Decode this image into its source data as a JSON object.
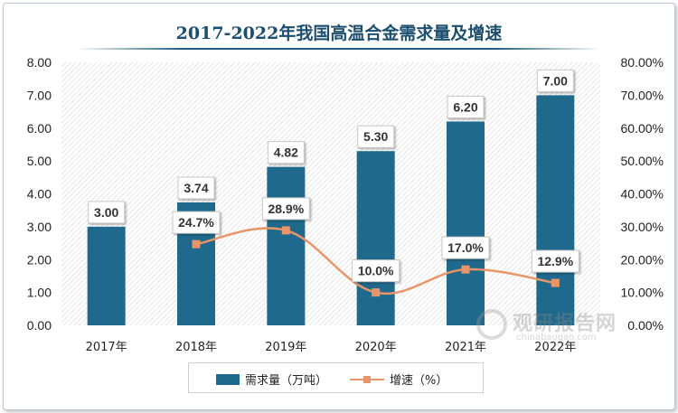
{
  "chart_data": {
    "type": "bar",
    "title": "2017-2022年我国高温合金需求量及增速",
    "categories": [
      "2017年",
      "2018年",
      "2019年",
      "2020年",
      "2021年",
      "2022年"
    ],
    "series": [
      {
        "name": "需求量（万吨）",
        "type": "bar",
        "axis": "left",
        "values": [
          3.0,
          3.74,
          4.82,
          5.3,
          6.2,
          7.0
        ],
        "labels": [
          "3.00",
          "3.74",
          "4.82",
          "5.30",
          "6.20",
          "7.00"
        ],
        "color": "#1f6a8c"
      },
      {
        "name": "增速（%）",
        "type": "line",
        "axis": "right",
        "values": [
          null,
          24.7,
          28.9,
          10.0,
          17.0,
          12.9
        ],
        "labels": [
          "",
          "24.7%",
          "28.9%",
          "10.0%",
          "17.0%",
          "12.9%"
        ],
        "color": "#e8956a"
      }
    ],
    "y_left": {
      "min": 0,
      "max": 8,
      "step": 1,
      "tick_labels": [
        "0.00",
        "1.00",
        "2.00",
        "3.00",
        "4.00",
        "5.00",
        "6.00",
        "7.00",
        "8.00"
      ]
    },
    "y_right": {
      "min": 0,
      "max": 80,
      "step": 10,
      "tick_labels": [
        "0.00%",
        "10.00%",
        "20.00%",
        "30.00%",
        "40.00%",
        "50.00%",
        "60.00%",
        "70.00%",
        "80.00%"
      ]
    },
    "legend_position": "bottom",
    "grid": false
  },
  "watermark": {
    "main": "观研报告网",
    "sub": "chinabaogao.com"
  }
}
